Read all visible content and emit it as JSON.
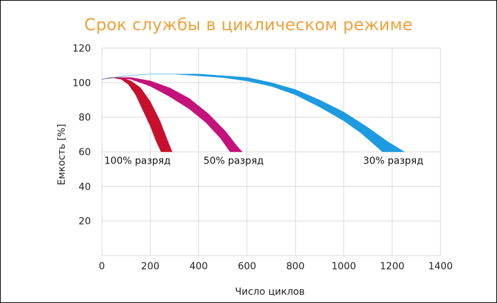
{
  "chart_data": {
    "type": "area",
    "title": "Срок службы в циклическом режиме",
    "xlabel": "Число циклов",
    "ylabel": "Емкость [%]",
    "xlim": [
      0,
      1400
    ],
    "ylim": [
      0,
      120
    ],
    "xticks": [
      0,
      200,
      400,
      600,
      800,
      1000,
      1200,
      1400
    ],
    "yticks": [
      20,
      40,
      60,
      80,
      100,
      120
    ],
    "grid": true,
    "series": [
      {
        "name": "100% разряд",
        "color": "#c8102e",
        "upper": [
          [
            0,
            102
          ],
          [
            40,
            103
          ],
          [
            80,
            103
          ],
          [
            120,
            101
          ],
          [
            160,
            97
          ],
          [
            200,
            89
          ],
          [
            240,
            78
          ],
          [
            270,
            67
          ],
          [
            290,
            60
          ]
        ],
        "lower": [
          [
            0,
            102
          ],
          [
            40,
            103
          ],
          [
            80,
            102
          ],
          [
            110,
            99
          ],
          [
            140,
            93
          ],
          [
            170,
            84
          ],
          [
            200,
            75
          ],
          [
            225,
            66
          ],
          [
            245,
            60
          ]
        ]
      },
      {
        "name": "50% разряд",
        "color": "#c4127a",
        "upper": [
          [
            0,
            102
          ],
          [
            60,
            103
          ],
          [
            120,
            103
          ],
          [
            200,
            101
          ],
          [
            280,
            97
          ],
          [
            360,
            91
          ],
          [
            440,
            82
          ],
          [
            510,
            72
          ],
          [
            560,
            63
          ],
          [
            580,
            60
          ]
        ],
        "lower": [
          [
            0,
            102
          ],
          [
            60,
            103
          ],
          [
            120,
            102
          ],
          [
            200,
            98
          ],
          [
            280,
            92
          ],
          [
            360,
            85
          ],
          [
            430,
            77
          ],
          [
            490,
            68
          ],
          [
            530,
            60
          ]
        ]
      },
      {
        "name": "30% разряд",
        "color": "#1e9be0",
        "upper": [
          [
            0,
            102
          ],
          [
            100,
            104
          ],
          [
            200,
            105
          ],
          [
            300,
            105
          ],
          [
            400,
            105
          ],
          [
            500,
            104
          ],
          [
            600,
            103
          ],
          [
            700,
            100
          ],
          [
            800,
            96
          ],
          [
            900,
            90
          ],
          [
            1000,
            83
          ],
          [
            1100,
            74
          ],
          [
            1180,
            66
          ],
          [
            1250,
            60
          ]
        ],
        "lower": [
          [
            0,
            102
          ],
          [
            100,
            104
          ],
          [
            200,
            105
          ],
          [
            300,
            105
          ],
          [
            400,
            104
          ],
          [
            500,
            103
          ],
          [
            600,
            101
          ],
          [
            700,
            98
          ],
          [
            800,
            93
          ],
          [
            900,
            86
          ],
          [
            1000,
            78
          ],
          [
            1070,
            71
          ],
          [
            1120,
            65
          ],
          [
            1160,
            60
          ]
        ]
      }
    ],
    "labels": [
      {
        "text": "100% разряд",
        "x": 10,
        "y": 55
      },
      {
        "text": "50% разряд",
        "x": 420,
        "y": 55
      },
      {
        "text": "30% разряд",
        "x": 1080,
        "y": 55
      }
    ]
  }
}
